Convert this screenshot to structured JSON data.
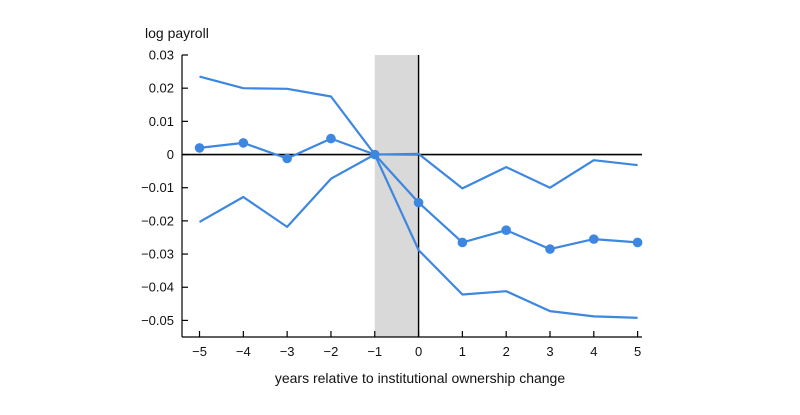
{
  "chart_data": {
    "type": "line",
    "ylabel": "log payroll",
    "xlabel": "years relative to institutional ownership change",
    "x": [
      -5,
      -4,
      -3,
      -2,
      -1,
      0,
      1,
      2,
      3,
      4,
      5
    ],
    "x_ticks": [
      -5,
      -4,
      -3,
      -2,
      -1,
      0,
      1,
      2,
      3,
      4,
      5
    ],
    "x_tick_labels": [
      "−5",
      "−4",
      "−3",
      "−2",
      "−1",
      "0",
      "1",
      "2",
      "3",
      "4",
      "5"
    ],
    "xlim": [
      -5.4,
      5.1
    ],
    "y_ticks": [
      0.03,
      0.02,
      0.01,
      0,
      -0.01,
      -0.02,
      -0.03,
      -0.04,
      -0.05
    ],
    "y_tick_labels": [
      "0.03",
      "0.02",
      "0.01",
      "0",
      "−0.01",
      "−0.02",
      "−0.03",
      "−0.04",
      "−0.05"
    ],
    "ylim": [
      -0.055,
      0.03
    ],
    "shaded_region": [
      -1,
      0
    ],
    "reference_lines": {
      "y": 0,
      "x": 0
    },
    "grid": false,
    "series": [
      {
        "role": "estimate",
        "markers": true,
        "values": [
          0.002,
          0.0035,
          -0.0012,
          0.0048,
          0.0,
          -0.0145,
          -0.0265,
          -0.0228,
          -0.0285,
          -0.0255,
          -0.0265
        ]
      },
      {
        "role": "upper_bound",
        "markers": false,
        "values": [
          0.0235,
          0.02,
          0.0198,
          0.0175,
          0.0,
          0.0002,
          -0.0102,
          -0.0038,
          -0.01,
          -0.0017,
          -0.0032
        ]
      },
      {
        "role": "lower_bound",
        "markers": false,
        "values": [
          -0.0203,
          -0.0128,
          -0.0218,
          -0.0073,
          0.0,
          -0.0288,
          -0.0422,
          -0.0412,
          -0.0472,
          -0.0488,
          -0.0492
        ]
      }
    ],
    "colors": {
      "line": "#3d87e0",
      "shade": "#d9d9d9",
      "axis": "#000000"
    }
  }
}
